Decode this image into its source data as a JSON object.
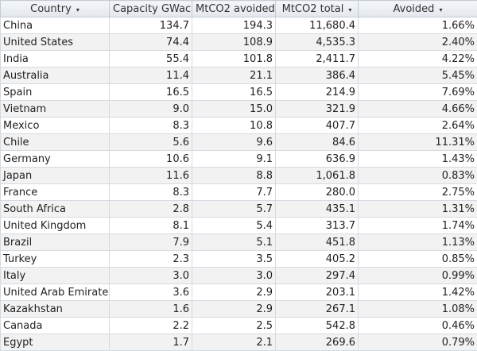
{
  "columns": [
    {
      "label": "Country",
      "sort_icon": "dropdown-arrow-icon"
    },
    {
      "label": "Capacity GWac",
      "sort_icon": "dropdown-arrow-icon"
    },
    {
      "label": "MtCO2 avoided",
      "sort_icon": "sort-descending-icon"
    },
    {
      "label": "MtCO2 total",
      "sort_icon": "dropdown-arrow-icon"
    },
    {
      "label": "Avoided",
      "sort_icon": "dropdown-arrow-icon"
    }
  ],
  "rows": [
    [
      "China",
      "134.7",
      "194.3",
      "11,680.4",
      "1.66%"
    ],
    [
      "United States",
      "74.4",
      "108.9",
      "4,535.3",
      "2.40%"
    ],
    [
      "India",
      "55.4",
      "101.8",
      "2,411.7",
      "4.22%"
    ],
    [
      "Australia",
      "11.4",
      "21.1",
      "386.4",
      "5.45%"
    ],
    [
      "Spain",
      "16.5",
      "16.5",
      "214.9",
      "7.69%"
    ],
    [
      "Vietnam",
      "9.0",
      "15.0",
      "321.9",
      "4.66%"
    ],
    [
      "Mexico",
      "8.3",
      "10.8",
      "407.7",
      "2.64%"
    ],
    [
      "Chile",
      "5.6",
      "9.6",
      "84.6",
      "11.31%"
    ],
    [
      "Germany",
      "10.6",
      "9.1",
      "636.9",
      "1.43%"
    ],
    [
      "Japan",
      "11.6",
      "8.8",
      "1,061.8",
      "0.83%"
    ],
    [
      "France",
      "8.3",
      "7.7",
      "280.0",
      "2.75%"
    ],
    [
      "South Africa",
      "2.8",
      "5.7",
      "435.1",
      "1.31%"
    ],
    [
      "United Kingdom",
      "8.1",
      "5.4",
      "313.7",
      "1.74%"
    ],
    [
      "Brazil",
      "7.9",
      "5.1",
      "451.8",
      "1.13%"
    ],
    [
      "Turkey",
      "2.3",
      "3.5",
      "405.2",
      "0.85%"
    ],
    [
      "Italy",
      "3.0",
      "3.0",
      "297.4",
      "0.99%"
    ],
    [
      "United Arab Emirates",
      "3.6",
      "2.9",
      "203.1",
      "1.42%"
    ],
    [
      "Kazakhstan",
      "1.6",
      "2.9",
      "267.1",
      "1.08%"
    ],
    [
      "Canada",
      "2.2",
      "2.5",
      "542.8",
      "0.46%"
    ],
    [
      "Egypt",
      "1.7",
      "2.1",
      "269.6",
      "0.79%"
    ]
  ]
}
